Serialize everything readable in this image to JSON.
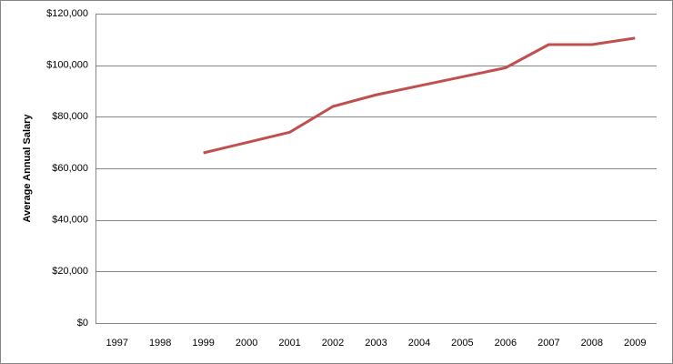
{
  "chart_data": {
    "type": "line",
    "ylabel": "Average Annual Salary",
    "categories": [
      "1997",
      "1998",
      "1999",
      "2000",
      "2001",
      "2002",
      "2003",
      "2004",
      "2005",
      "2006",
      "2007",
      "2008",
      "2009"
    ],
    "series": [
      {
        "name": "Average Annual Salary",
        "color": "#c0504d",
        "values": [
          null,
          null,
          66000,
          70000,
          74000,
          84000,
          88500,
          92000,
          95500,
          99000,
          108000,
          108000,
          110500
        ]
      }
    ],
    "ylim": [
      0,
      120000
    ],
    "yticks": [
      {
        "value": 0,
        "label": "$0"
      },
      {
        "value": 20000,
        "label": "$20,000"
      },
      {
        "value": 40000,
        "label": "$40,000"
      },
      {
        "value": 60000,
        "label": "$60,000"
      },
      {
        "value": 80000,
        "label": "$80,000"
      },
      {
        "value": 100000,
        "label": "$100,000"
      },
      {
        "value": 120000,
        "label": "$120,000"
      }
    ],
    "grid": true
  }
}
